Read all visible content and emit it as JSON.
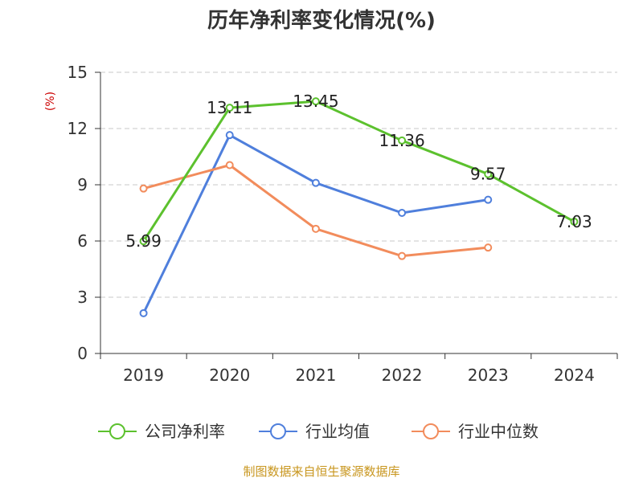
{
  "chart_data": {
    "type": "line",
    "title": "历年净利率变化情况(%)",
    "ylabel": "(%)",
    "xlabel": "",
    "categories": [
      "2019",
      "2020",
      "2021",
      "2022",
      "2023",
      "2024"
    ],
    "ylim": [
      0,
      15
    ],
    "yticks": [
      "0",
      "3",
      "6",
      "9",
      "12",
      "15"
    ],
    "grid": true,
    "legend_position": "bottom",
    "series": [
      {
        "name": "公司净利率",
        "values": [
          5.99,
          13.11,
          13.45,
          11.36,
          9.57,
          7.03
        ],
        "color": "#5cc12e",
        "labels": [
          "5.99",
          "13.11",
          "13.45",
          "11.36",
          "9.57",
          "7.03"
        ]
      },
      {
        "name": "行业均值",
        "values": [
          2.15,
          11.65,
          9.1,
          7.5,
          8.2,
          null
        ],
        "color": "#4f7fdc"
      },
      {
        "name": "行业中位数",
        "values": [
          8.8,
          10.05,
          6.65,
          5.2,
          5.65,
          null
        ],
        "color": "#f28c5c"
      }
    ]
  },
  "footer": {
    "source": "制图数据来自恒生聚源数据库"
  }
}
